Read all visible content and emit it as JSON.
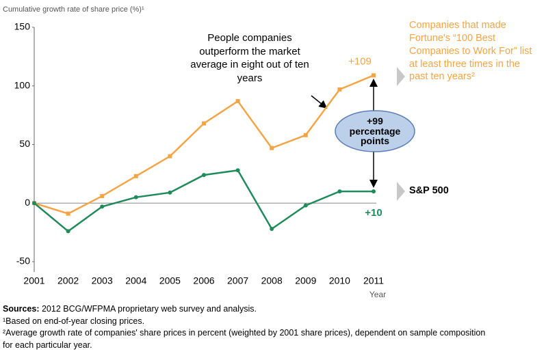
{
  "chart_data": {
    "type": "line",
    "y_axis_label": "Cumulative growth rate of share price (%)¹",
    "x_axis_label": "Year",
    "categories": [
      "2001",
      "2002",
      "2003",
      "2004",
      "2005",
      "2006",
      "2007",
      "2008",
      "2009",
      "2010",
      "2011"
    ],
    "series": [
      {
        "name": "Companies that made Fortune's “100 Best Companies to Work For” list at least three times in the past ten years²",
        "color": "#f5a445",
        "values": [
          0,
          -9,
          6,
          23,
          40,
          68,
          87,
          47,
          58,
          97,
          109
        ],
        "value_labels": [
          null,
          null,
          null,
          null,
          null,
          null,
          null,
          null,
          null,
          null,
          "+109"
        ]
      },
      {
        "name": "S&P 500",
        "color": "#1f8a5a",
        "values": [
          0,
          -24,
          -3,
          5,
          9,
          24,
          28,
          -22,
          -2,
          10,
          10
        ],
        "value_labels": [
          null,
          null,
          null,
          null,
          null,
          null,
          null,
          null,
          null,
          null,
          "+10"
        ]
      }
    ],
    "ylim": [
      -50,
      150
    ],
    "yticks": [
      -50,
      0,
      50,
      100,
      150
    ],
    "grid": false,
    "annotations": [
      "People companies outperform the market average in eight out of ten years",
      "+99 percentage points"
    ],
    "sources_label": "Sources:",
    "sources": "2012 BCG/WFPMA proprietary web survey and analysis.",
    "footnotes": [
      "¹Based on end-of-year closing prices.",
      "²Average growth rate of companies' share prices in percent (weighted by 2001 share prices), dependent on sample composition for each particular year."
    ]
  }
}
